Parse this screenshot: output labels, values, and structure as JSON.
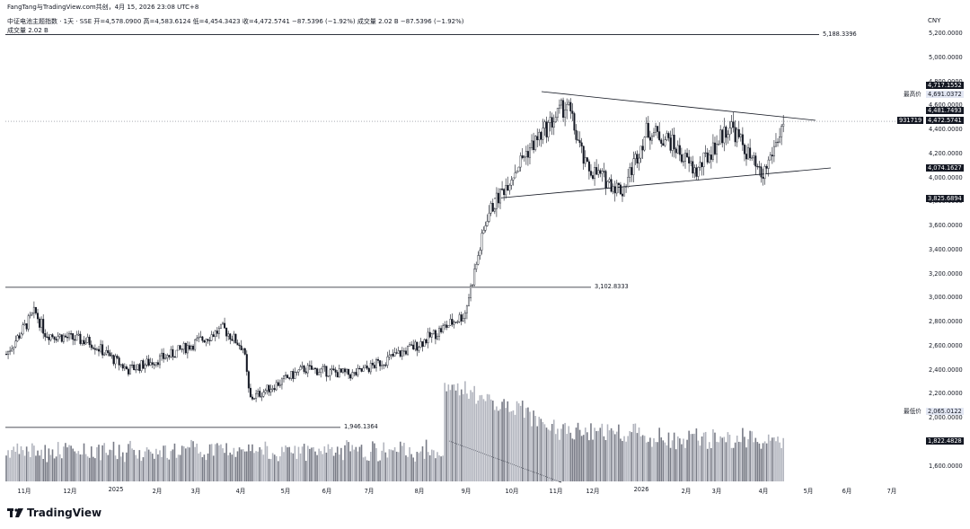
{
  "header": {
    "credit": "FangTang与TradingView.com共创，4月 15, 2026 23:08 UTC+8",
    "ohlc": "中证电池主题指数 · 1天 · SSE  开=4,578.0900  高=4,583.6124  低=4,454.3423  收=4,472.5741  −87.5396 (−1.92%)  成交量 2.02 B  −87.5396 (−1.92%)",
    "volume": "成交量  2.02 B"
  },
  "currency": "CNY",
  "price_axis": [
    "5,200.0000",
    "5,000.0000",
    "4,800.0000",
    "4,600.0000",
    "4,400.0000",
    "4,200.0000",
    "4,000.0000",
    "3,800.0000",
    "3,600.0000",
    "3,400.0000",
    "3,200.0000",
    "3,000.0000",
    "2,800.0000",
    "2,600.0000",
    "2,400.0000",
    "2,200.0000",
    "2,000.0000",
    "1,800.0000",
    "1,600.0000"
  ],
  "time_axis": [
    "11月",
    "12月",
    "2025",
    "2月",
    "3月",
    "4月",
    "5月",
    "6月",
    "7月",
    "8月",
    "9月",
    "10月",
    "11月",
    "12月",
    "2026",
    "2月",
    "3月",
    "4月",
    "5月",
    "6月",
    "7月"
  ],
  "horizontal_lines": [
    {
      "label": "5,188.3396",
      "value": 5188.3396
    },
    {
      "label": "3,102.8333",
      "value": 3102.8333
    },
    {
      "label": "1,946.1364",
      "value": 1946.1364
    }
  ],
  "axis_tags": {
    "tag_4717": "4,717.1552",
    "high_label": "最高价",
    "high_value": "4,691.0372",
    "tag_4481": "4,481.7493",
    "symbol_code": "931719",
    "close_value": "4,472.5741",
    "tag_4074": "4,074.1627",
    "tag_3825": "3,825.6894",
    "low_label": "最低价",
    "low_value": "2,065.0122",
    "tag_1822": "1,822.4828"
  },
  "colors": {
    "up": "#131722",
    "down": "#131722",
    "volume_up": "#b2b5be",
    "volume_down": "#787b86",
    "tag_dark": "#131722",
    "tag_light": "#e3e7f3"
  },
  "brand": "TradingView",
  "chart_data": {
    "type": "candlestick",
    "title": "中证电池主题指数 · 1天 · SSE",
    "x_range": [
      "2024-11",
      "2026-07"
    ],
    "y_range": [
      1500,
      5250
    ],
    "last_close": 4472.5741,
    "triangle_upper": [
      {
        "x": "2025-11",
        "y": 4700
      },
      {
        "x": "2026-04",
        "y": 4480
      }
    ],
    "triangle_lower": [
      {
        "x": "2025-10",
        "y": 3825
      },
      {
        "x": "2026-04",
        "y": 4074
      }
    ],
    "path_anchors": [
      {
        "x": "2024-10-25",
        "y": 2640
      },
      {
        "x": "2024-11-08",
        "y": 2900
      },
      {
        "x": "2024-11-15",
        "y": 2720
      },
      {
        "x": "2024-12-15",
        "y": 2650
      },
      {
        "x": "2025-01-10",
        "y": 2420
      },
      {
        "x": "2025-02-10",
        "y": 2540
      },
      {
        "x": "2025-03-20",
        "y": 2760
      },
      {
        "x": "2025-04-03",
        "y": 2600
      },
      {
        "x": "2025-04-07",
        "y": 2180
      },
      {
        "x": "2025-05-15",
        "y": 2430
      },
      {
        "x": "2025-06-20",
        "y": 2380
      },
      {
        "x": "2025-07-30",
        "y": 2620
      },
      {
        "x": "2025-08-31",
        "y": 2880
      },
      {
        "x": "2025-09-15",
        "y": 3700
      },
      {
        "x": "2025-10-10",
        "y": 4200
      },
      {
        "x": "2025-11-10",
        "y": 4620
      },
      {
        "x": "2025-11-25",
        "y": 4100
      },
      {
        "x": "2025-12-20",
        "y": 3900
      },
      {
        "x": "2026-01-05",
        "y": 4400
      },
      {
        "x": "2026-01-20",
        "y": 4320
      },
      {
        "x": "2026-02-10",
        "y": 4050
      },
      {
        "x": "2026-03-10",
        "y": 4450
      },
      {
        "x": "2026-03-31",
        "y": 4000
      },
      {
        "x": "2026-04-15",
        "y": 4472
      }
    ]
  }
}
